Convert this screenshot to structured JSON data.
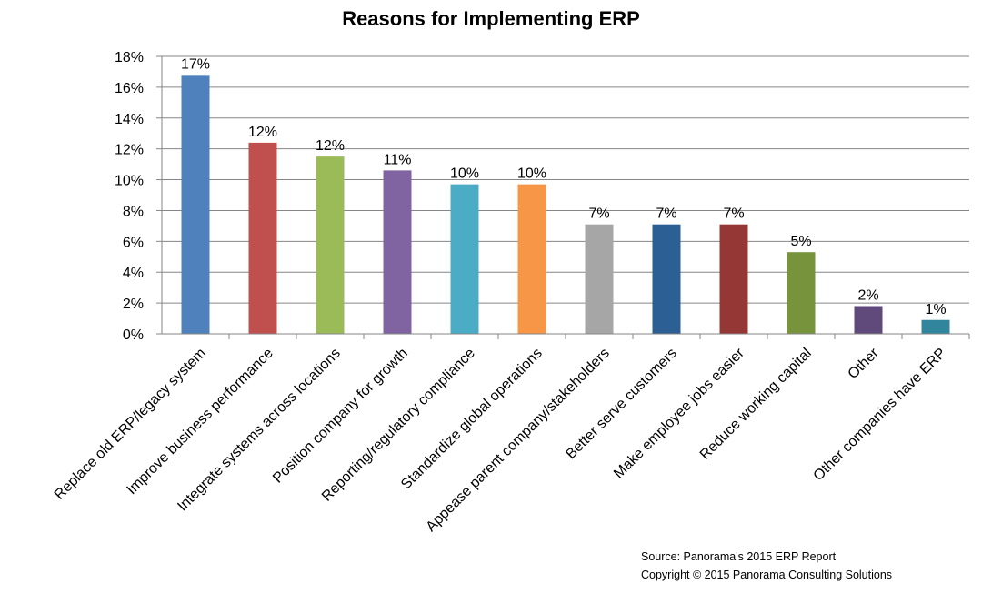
{
  "chart_data": {
    "type": "bar",
    "title": "Reasons for Implementing ERP",
    "xlabel": "",
    "ylabel": "",
    "ylim": [
      0,
      18
    ],
    "y_ticks": [
      "0%",
      "2%",
      "4%",
      "6%",
      "8%",
      "10%",
      "12%",
      "14%",
      "16%",
      "18%"
    ],
    "gridlines": true,
    "legend": "none",
    "categories": [
      "Replace old ERP/legacy system",
      "Improve business performance",
      "Integrate systems across locations",
      "Position company for growth",
      "Reporting/regulatory compliance",
      "Standardize global operations",
      "Appease parent company/stakeholders",
      "Better serve customers",
      "Make employee jobs easier",
      "Reduce working capital",
      "Other",
      "Other companies have ERP"
    ],
    "values": [
      16.8,
      12.4,
      11.5,
      10.6,
      9.7,
      9.7,
      7.1,
      7.1,
      7.1,
      5.3,
      1.8,
      0.9
    ],
    "data_labels": [
      "17%",
      "12%",
      "12%",
      "11%",
      "10%",
      "10%",
      "7%",
      "7%",
      "7%",
      "5%",
      "2%",
      "1%"
    ],
    "colors": [
      "#4f81bd",
      "#c0504d",
      "#9bbb59",
      "#8064a2",
      "#4bacc6",
      "#f79646",
      "#a6a6a6",
      "#2c5f93",
      "#953735",
      "#77933c",
      "#604a7b",
      "#31859c"
    ]
  },
  "source": {
    "line1": "Source: Panorama's 2015 ERP Report",
    "line2": "Copyright © 2015 Panorama Consulting Solutions"
  }
}
